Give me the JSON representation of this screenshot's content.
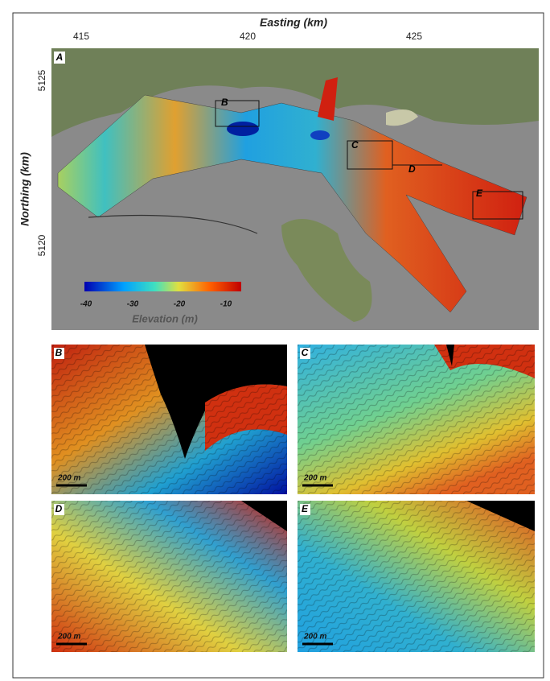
{
  "figure": {
    "x_axis_label": "Easting (km)",
    "x_ticks": [
      415,
      420,
      425
    ],
    "y_axis_label": "Northing (km)",
    "y_ticks": [
      5125,
      5120
    ],
    "main_panel": {
      "label": "A",
      "box_labels": [
        "B",
        "C",
        "D",
        "E"
      ]
    },
    "colorbar": {
      "ticks": [
        -40,
        -30,
        -20,
        -10
      ],
      "label": "Elevation (m)"
    },
    "detail_panels": [
      {
        "label": "B",
        "scale_bar": "200 m"
      },
      {
        "label": "C",
        "scale_bar": "200 m"
      },
      {
        "label": "D",
        "scale_bar": "200 m"
      },
      {
        "label": "E",
        "scale_bar": "200 m"
      }
    ]
  }
}
